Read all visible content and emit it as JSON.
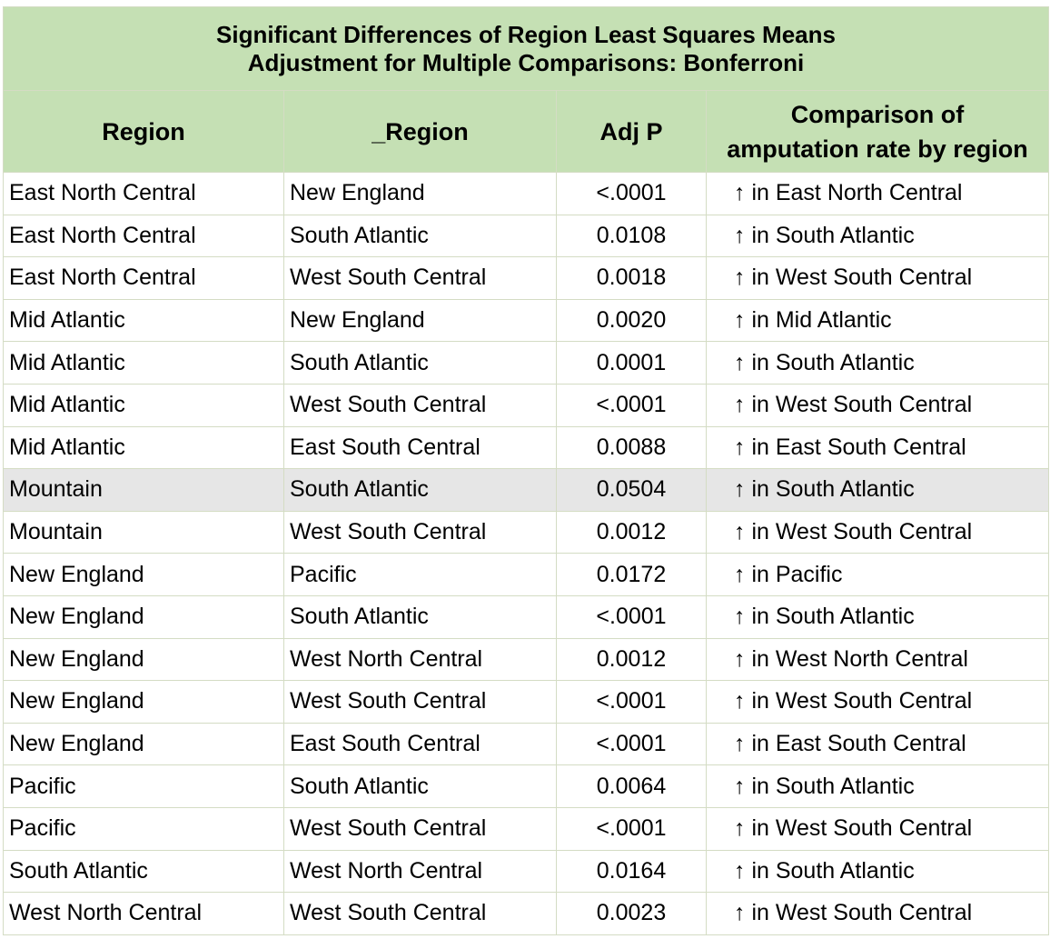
{
  "title_line1": "Significant Differences of Region Least Squares Means",
  "title_line2": "Adjustment for Multiple Comparisons: Bonferroni",
  "columns": [
    "Region",
    "_Region",
    "Adj P",
    "Comparison of amputation rate by region"
  ],
  "column4_line1": "Comparison of",
  "column4_line2": "amputation rate by region",
  "colors": {
    "header_bg": "#c5e0b4",
    "highlight_row": "#e6e6e6",
    "border": "#d4dcc4"
  },
  "highlighted_row_index": 7,
  "rows": [
    [
      "East North Central",
      "New England",
      "<.0001",
      "↑ in East North Central"
    ],
    [
      "East North Central",
      "South Atlantic",
      "0.0108",
      "↑ in South Atlantic"
    ],
    [
      "East North Central",
      "West South Central",
      "0.0018",
      "↑ in West South Central"
    ],
    [
      "Mid Atlantic",
      "New England",
      "0.0020",
      "↑ in Mid Atlantic"
    ],
    [
      "Mid Atlantic",
      "South Atlantic",
      "0.0001",
      "↑ in South Atlantic"
    ],
    [
      "Mid Atlantic",
      "West South Central",
      "<.0001",
      "↑ in West South Central"
    ],
    [
      "Mid Atlantic",
      "East South Central",
      "0.0088",
      "↑ in East South Central"
    ],
    [
      "Mountain",
      "South Atlantic",
      "0.0504",
      "↑ in South Atlantic"
    ],
    [
      "Mountain",
      "West South Central",
      "0.0012",
      "↑ in West South Central"
    ],
    [
      "New England",
      "Pacific",
      "0.0172",
      "↑ in Pacific"
    ],
    [
      "New England",
      "South Atlantic",
      "<.0001",
      "↑ in South Atlantic"
    ],
    [
      "New England",
      "West North Central",
      "0.0012",
      "↑ in West North Central"
    ],
    [
      "New England",
      "West South Central",
      "<.0001",
      "↑ in West South Central"
    ],
    [
      "New England",
      "East South Central",
      "<.0001",
      "↑ in East South Central"
    ],
    [
      "Pacific",
      "South Atlantic",
      "0.0064",
      "↑ in South Atlantic"
    ],
    [
      "Pacific",
      "West South Central",
      "<.0001",
      "↑ in West South Central"
    ],
    [
      "South Atlantic",
      "West North Central",
      "0.0164",
      "↑ in South Atlantic"
    ],
    [
      "West North Central",
      "West South Central",
      "0.0023",
      "↑ in West South Central"
    ]
  ]
}
